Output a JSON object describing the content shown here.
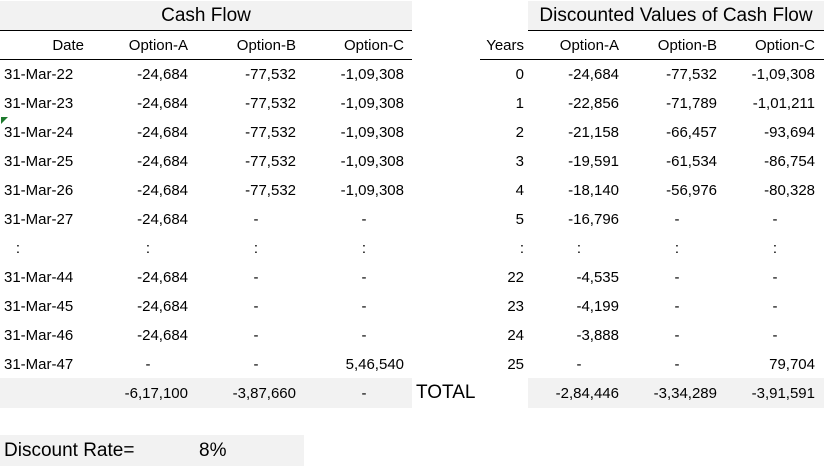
{
  "cash_flow": {
    "title": "Cash Flow",
    "headers": [
      "Date",
      "Option-A",
      "Option-B",
      "Option-C"
    ],
    "rows": [
      [
        "31-Mar-22",
        "-24,684",
        "-77,532",
        "-1,09,308"
      ],
      [
        "31-Mar-23",
        "-24,684",
        "-77,532",
        "-1,09,308"
      ],
      [
        "31-Mar-24",
        "-24,684",
        "-77,532",
        "-1,09,308"
      ],
      [
        "31-Mar-25",
        "-24,684",
        "-77,532",
        "-1,09,308"
      ],
      [
        "31-Mar-26",
        "-24,684",
        "-77,532",
        "-1,09,308"
      ],
      [
        "31-Mar-27",
        "-24,684",
        "-",
        "-"
      ],
      [
        ":",
        ":",
        ":",
        ":"
      ],
      [
        "31-Mar-44",
        "-24,684",
        "-",
        "-"
      ],
      [
        "31-Mar-45",
        "-24,684",
        "-",
        "-"
      ],
      [
        "31-Mar-46",
        "-24,684",
        "-",
        "-"
      ],
      [
        "31-Mar-47",
        "-",
        "-",
        "5,46,540"
      ]
    ],
    "totals": [
      "-6,17,100",
      "-3,87,660",
      "-"
    ]
  },
  "discounted": {
    "title": "Discounted Values of Cash Flow",
    "headers": [
      "Years",
      "Option-A",
      "Option-B",
      "Option-C"
    ],
    "rows": [
      [
        "0",
        "-24,684",
        "-77,532",
        "-1,09,308"
      ],
      [
        "1",
        "-22,856",
        "-71,789",
        "-1,01,211"
      ],
      [
        "2",
        "-21,158",
        "-66,457",
        "-93,694"
      ],
      [
        "3",
        "-19,591",
        "-61,534",
        "-86,754"
      ],
      [
        "4",
        "-18,140",
        "-56,976",
        "-80,328"
      ],
      [
        "5",
        "-16,796",
        "-",
        "-"
      ],
      [
        ":",
        ":",
        ":",
        ":"
      ],
      [
        "22",
        "-4,535",
        "-",
        "-"
      ],
      [
        "23",
        "-4,199",
        "-",
        "-"
      ],
      [
        "24",
        "-3,888",
        "-",
        "-"
      ],
      [
        "25",
        "-",
        "-",
        "79,704"
      ]
    ],
    "total_label": "TOTAL",
    "totals": [
      "-2,84,446",
      "-3,34,289",
      "-3,91,591"
    ]
  },
  "discount": {
    "label": "Discount Rate=",
    "value": "8%"
  }
}
